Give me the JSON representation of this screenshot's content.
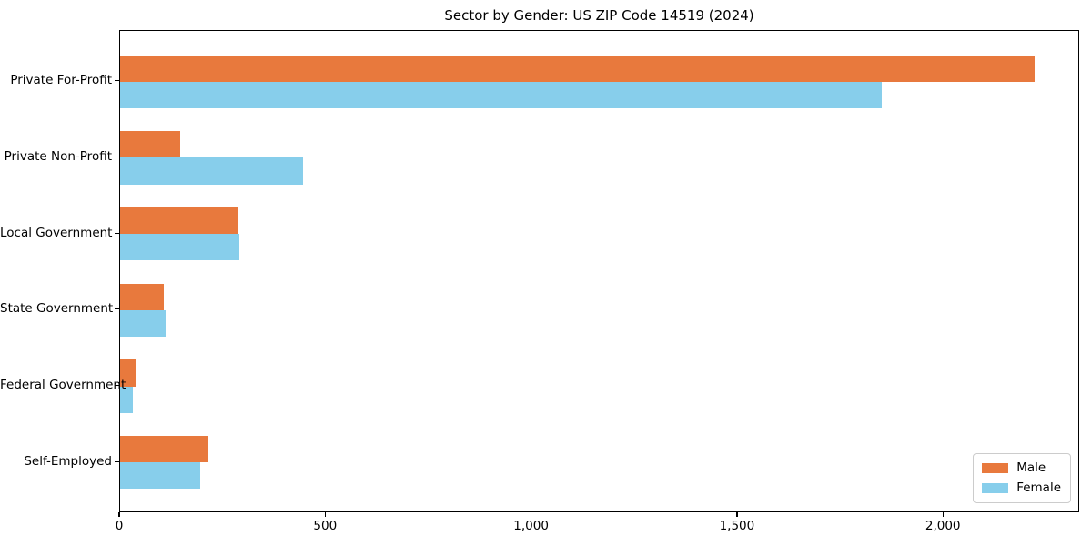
{
  "chart_data": {
    "type": "bar",
    "orientation": "horizontal",
    "title": "Sector by Gender: US ZIP Code 14519 (2024)",
    "categories": [
      "Private For-Profit",
      "Private Non-Profit",
      "Local Government",
      "State Government",
      "Federal Government",
      "Self-Employed"
    ],
    "series": [
      {
        "name": "Male",
        "color": "#e8793d",
        "values": [
          2220,
          145,
          285,
          105,
          40,
          215
        ]
      },
      {
        "name": "Female",
        "color": "#87ceeb",
        "values": [
          1850,
          445,
          290,
          110,
          30,
          195
        ]
      }
    ],
    "xlim": [
      0,
      2331
    ],
    "x_ticks": [
      {
        "value": 0,
        "label": "0"
      },
      {
        "value": 500,
        "label": "500"
      },
      {
        "value": 1000,
        "label": "1,000"
      },
      {
        "value": 1500,
        "label": "1,500"
      },
      {
        "value": 2000,
        "label": "2,000"
      }
    ],
    "xlabel": "",
    "ylabel": "",
    "grid": false,
    "legend": {
      "position": "lower right",
      "entries": [
        "Male",
        "Female"
      ]
    },
    "colors": {
      "male": "#e8793d",
      "female": "#87ceeb",
      "spine": "#000000",
      "background": "#ffffff",
      "legend_border": "#cccccc"
    }
  }
}
